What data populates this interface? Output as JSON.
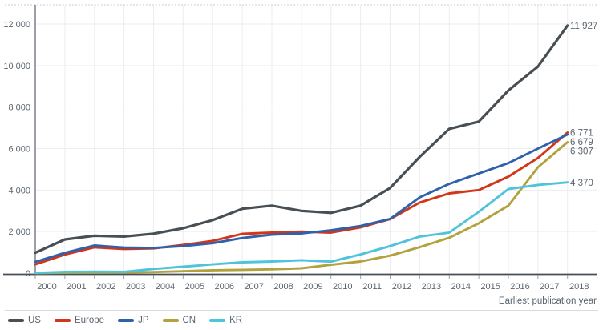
{
  "chart_data": {
    "type": "line",
    "title": "",
    "xlabel": "Earliest publication year",
    "ylabel": "",
    "grid": true,
    "legend_position": "bottom-left",
    "x": [
      2000,
      2001,
      2002,
      2003,
      2004,
      2005,
      2006,
      2007,
      2008,
      2009,
      2010,
      2011,
      2012,
      2013,
      2014,
      2015,
      2016,
      2017,
      2018
    ],
    "ylim": [
      0,
      12000
    ],
    "y_ticks": {
      "values": [
        0,
        2000,
        4000,
        6000,
        8000,
        10000,
        12000
      ],
      "labels": [
        "0",
        "2 000",
        "4 000",
        "6 000",
        "8 000",
        "10 000",
        "12 000"
      ]
    },
    "series": [
      {
        "name": "US",
        "color": "#474f54",
        "end_label": "11 927",
        "values": [
          980,
          1620,
          1800,
          1760,
          1900,
          2160,
          2550,
          3100,
          3250,
          3000,
          2900,
          3250,
          4100,
          5600,
          6950,
          7300,
          8800,
          9950,
          11927
        ]
      },
      {
        "name": "Europe",
        "color": "#d1351a",
        "end_label": "6 771",
        "values": [
          420,
          890,
          1240,
          1160,
          1190,
          1360,
          1550,
          1890,
          1950,
          2000,
          1950,
          2200,
          2600,
          3400,
          3840,
          4000,
          4650,
          5550,
          6771
        ]
      },
      {
        "name": "JP",
        "color": "#2e62ac",
        "end_label": "6 679",
        "values": [
          540,
          980,
          1330,
          1230,
          1210,
          1300,
          1440,
          1690,
          1850,
          1910,
          2060,
          2270,
          2610,
          3650,
          4300,
          4800,
          5300,
          6000,
          6679
        ]
      },
      {
        "name": "CN",
        "color": "#b2a23e",
        "end_label": "6 307",
        "values": [
          5,
          15,
          25,
          30,
          50,
          90,
          140,
          160,
          180,
          230,
          400,
          560,
          840,
          1250,
          1700,
          2400,
          3250,
          5100,
          6307
        ]
      },
      {
        "name": "KR",
        "color": "#4fc3dc",
        "end_label": "4 370",
        "values": [
          10,
          60,
          70,
          60,
          200,
          310,
          420,
          520,
          560,
          620,
          550,
          900,
          1300,
          1760,
          1950,
          2950,
          4050,
          4250,
          4370
        ]
      }
    ],
    "colors": {
      "text": "#5b6570",
      "gridline": "#ededed",
      "y_axis": "#70797f",
      "x_axis": "#474f54",
      "tick": "#9aa2a9",
      "top_border": "#c9cfd4",
      "legend_border": "#d8dcdf",
      "background": "#ffffff"
    }
  }
}
